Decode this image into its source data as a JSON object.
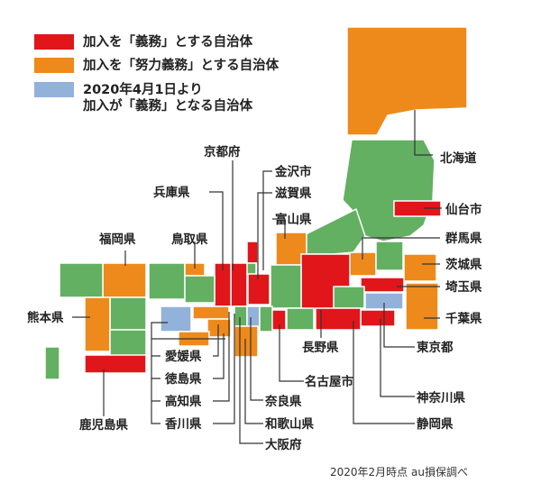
{
  "colors": {
    "mandatory": "#e0161b",
    "effort": "#ee8a1c",
    "upcoming": "#92b2d9",
    "other": "#63b062"
  },
  "legend": [
    {
      "key": "mandatory",
      "text": "加入を「義務」とする自治体"
    },
    {
      "key": "effort",
      "text": "加入を「努力義務」とする自治体"
    },
    {
      "key": "upcoming",
      "text": "2020年4月1日より\n加入が「義務」となる自治体"
    }
  ],
  "labels": {
    "hokkaido": "北海道",
    "sendai": "仙台市",
    "gunma": "群馬県",
    "ibaraki": "茨城県",
    "saitama": "埼玉県",
    "chiba": "千葉県",
    "tokyo": "東京都",
    "kanagawa": "神奈川県",
    "shizuoka": "静岡県",
    "nagano": "長野県",
    "nagoya": "名古屋市",
    "nara": "奈良県",
    "wakayama": "和歌山県",
    "osaka": "大阪府",
    "kyoto": "京都府",
    "kanazawa": "金沢市",
    "shiga": "滋賀県",
    "toyama": "富山県",
    "hyogo": "兵庫県",
    "tottori": "鳥取県",
    "fukuoka": "福岡県",
    "kumamoto": "熊本県",
    "kagoshima": "鹿児島県",
    "ehime": "愛媛県",
    "tokushima": "徳島県",
    "kochi": "高知県",
    "kagawa": "香川県"
  },
  "credit": "2020年2月時点 au損保調べ"
}
